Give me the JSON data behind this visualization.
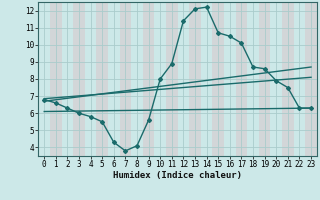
{
  "xlabel": "Humidex (Indice chaleur)",
  "background_color": "#cce8e8",
  "grid_color": "#aacccc",
  "band_color": "#d8c8cc",
  "line_color": "#1a6b6b",
  "xlim": [
    -0.5,
    23.5
  ],
  "ylim": [
    3.5,
    12.5
  ],
  "xticks": [
    0,
    1,
    2,
    3,
    4,
    5,
    6,
    7,
    8,
    9,
    10,
    11,
    12,
    13,
    14,
    15,
    16,
    17,
    18,
    19,
    20,
    21,
    22,
    23
  ],
  "yticks": [
    4,
    5,
    6,
    7,
    8,
    9,
    10,
    11,
    12
  ],
  "main_x": [
    0,
    1,
    2,
    3,
    4,
    5,
    6,
    7,
    8,
    9,
    10,
    11,
    12,
    13,
    14,
    15,
    16,
    17,
    18,
    19,
    20,
    21,
    22,
    23
  ],
  "main_y": [
    6.8,
    6.6,
    6.3,
    6.0,
    5.8,
    5.5,
    4.3,
    3.8,
    4.1,
    5.6,
    8.0,
    8.9,
    11.4,
    12.1,
    12.2,
    10.7,
    10.5,
    10.1,
    8.7,
    8.6,
    7.9,
    7.5,
    6.3,
    6.3
  ],
  "line2_x": [
    0,
    23
  ],
  "line2_y": [
    6.85,
    8.1
  ],
  "line3_x": [
    0,
    23
  ],
  "line3_y": [
    6.7,
    8.7
  ],
  "line4_x": [
    0,
    23
  ],
  "line4_y": [
    6.1,
    6.3
  ]
}
